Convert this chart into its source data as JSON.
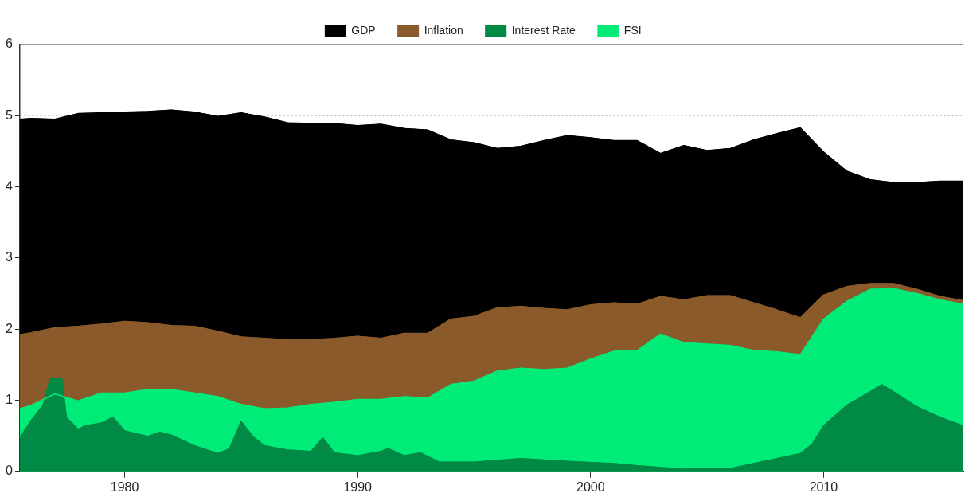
{
  "chart_data": {
    "type": "area",
    "x": [
      1975.5,
      1976,
      1977,
      1978,
      1979,
      1980,
      1981,
      1982,
      1983,
      1984,
      1985,
      1986,
      1987,
      1988,
      1989,
      1990,
      1991,
      1992,
      1993,
      1994,
      1995,
      1996,
      1997,
      1998,
      1999,
      2000,
      2001,
      2002,
      2003,
      2004,
      2005,
      2006,
      2007,
      2008,
      2009,
      2010,
      2011,
      2012,
      2013,
      2014,
      2015,
      2016
    ],
    "series": [
      {
        "name": "GDP",
        "color": "#000000",
        "values": [
          4.95,
          4.96,
          4.95,
          5.03,
          5.04,
          5.05,
          5.06,
          5.08,
          5.05,
          4.99,
          5.04,
          4.98,
          4.9,
          4.89,
          4.89,
          4.86,
          4.88,
          4.82,
          4.8,
          4.66,
          4.62,
          4.54,
          4.57,
          4.65,
          4.72,
          4.69,
          4.65,
          4.65,
          4.47,
          4.58,
          4.51,
          4.54,
          4.66,
          4.75,
          4.83,
          4.49,
          4.22,
          4.1,
          4.06,
          4.06,
          4.08,
          4.08
        ]
      },
      {
        "name": "Inflation",
        "color": "#8b5a2b",
        "values": [
          1.92,
          1.95,
          2.02,
          2.04,
          2.07,
          2.11,
          2.09,
          2.05,
          2.04,
          1.97,
          1.89,
          1.87,
          1.85,
          1.85,
          1.87,
          1.9,
          1.87,
          1.94,
          1.94,
          2.14,
          2.18,
          2.3,
          2.32,
          2.29,
          2.27,
          2.34,
          2.37,
          2.35,
          2.46,
          2.41,
          2.47,
          2.47,
          2.37,
          2.27,
          2.16,
          2.48,
          2.6,
          2.64,
          2.64,
          2.56,
          2.46,
          2.4
        ]
      },
      {
        "name": "Interest Rate",
        "color": "#008a45",
        "x": [
          1975.5,
          1976,
          1976.5,
          1976.8,
          1977.3,
          1977.5,
          1978,
          1978.3,
          1979,
          1979.5,
          1980,
          1981,
          1981.5,
          1982,
          1983,
          1984,
          1984.5,
          1985,
          1985.5,
          1986,
          1987,
          1988,
          1988.5,
          1989,
          1990,
          1991,
          1991.3,
          1992,
          1992.7,
          1993.5,
          1995,
          1997,
          1999,
          2001,
          2002,
          2004,
          2006,
          2008,
          2009,
          2009.5,
          2010,
          2011,
          2012,
          2012.5,
          2013,
          2014,
          2015,
          2016
        ],
        "values": [
          0.47,
          0.72,
          0.93,
          1.3,
          1.31,
          0.76,
          0.59,
          0.64,
          0.68,
          0.76,
          0.57,
          0.49,
          0.55,
          0.51,
          0.36,
          0.25,
          0.32,
          0.7,
          0.49,
          0.36,
          0.3,
          0.28,
          0.47,
          0.26,
          0.22,
          0.28,
          0.32,
          0.22,
          0.26,
          0.13,
          0.13,
          0.18,
          0.14,
          0.11,
          0.08,
          0.03,
          0.04,
          0.18,
          0.25,
          0.38,
          0.64,
          0.93,
          1.12,
          1.22,
          1.12,
          0.91,
          0.76,
          0.64
        ]
      },
      {
        "name": "FSI",
        "color": "#00eb78",
        "values": [
          0.88,
          0.93,
          1.09,
          0.99,
          1.1,
          1.1,
          1.15,
          1.15,
          1.1,
          1.05,
          0.94,
          0.88,
          0.89,
          0.94,
          0.97,
          1.01,
          1.01,
          1.05,
          1.03,
          1.22,
          1.27,
          1.41,
          1.45,
          1.43,
          1.45,
          1.58,
          1.69,
          1.7,
          1.93,
          1.81,
          1.79,
          1.77,
          1.7,
          1.68,
          1.64,
          2.14,
          2.39,
          2.56,
          2.57,
          2.5,
          2.41,
          2.35
        ]
      }
    ],
    "xlim": [
      1975.5,
      2016
    ],
    "xticks": [
      1980,
      1990,
      2000,
      2010
    ],
    "ylim": [
      0,
      6
    ],
    "yticks": [
      0,
      1,
      2,
      3,
      4,
      5,
      6
    ],
    "grid": "y",
    "legend": "top"
  }
}
